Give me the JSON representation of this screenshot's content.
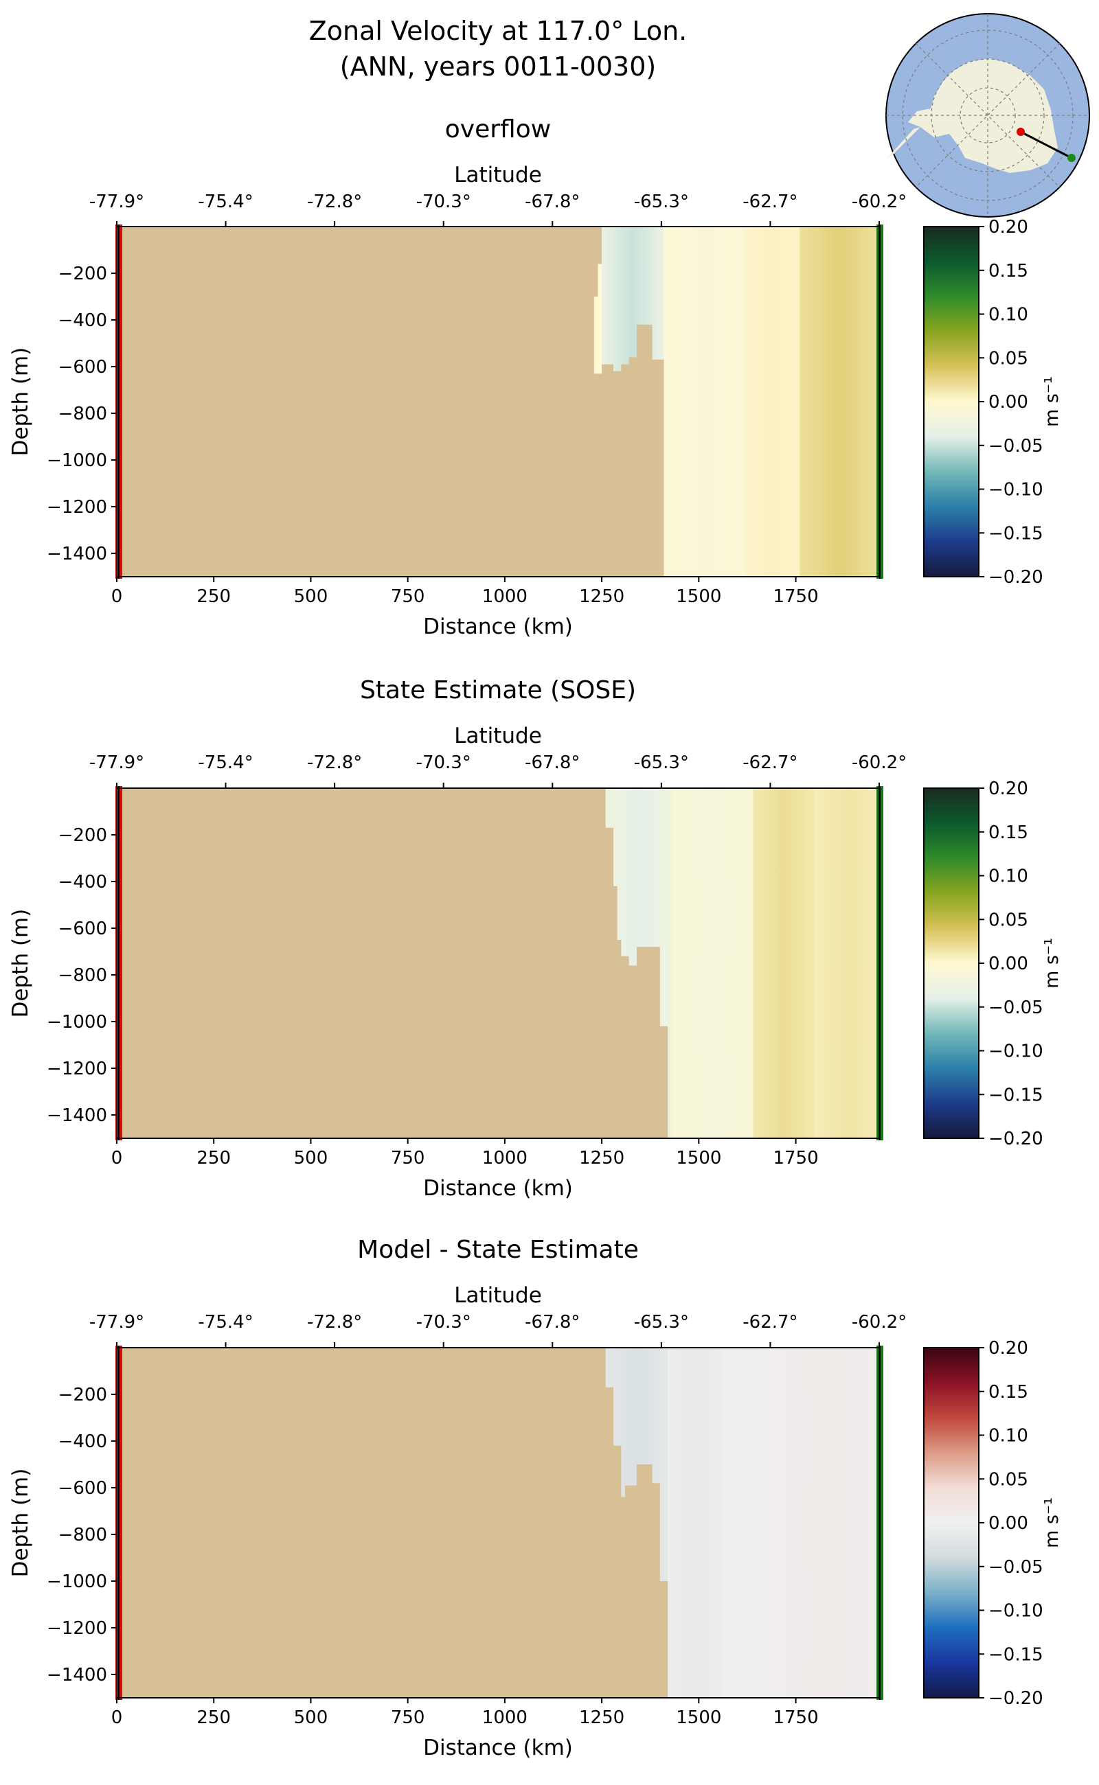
{
  "figure": {
    "title_line1": "Zonal Velocity at 117.0° Lon.",
    "title_line2": "(ANN, years 0011-0030)"
  },
  "inset_map": {
    "type": "south-polar-stereographic",
    "land_color": "#efefdb",
    "ocean_color": "#9bb7e0",
    "start_marker_color": "#e00000",
    "end_marker_color": "#1a8c1a"
  },
  "chart_data": [
    {
      "type": "heatmap",
      "title": "overflow",
      "xlabel": "Distance (km)",
      "ylabel": "Depth (m)",
      "top_xlabel": "Latitude",
      "xlim": [
        0,
        1965
      ],
      "ylim": [
        -1500,
        0
      ],
      "xticks": [
        0,
        250,
        500,
        750,
        1000,
        1250,
        1500,
        1750
      ],
      "yticks": [
        -200,
        -400,
        -600,
        -800,
        -1000,
        -1200,
        -1400
      ],
      "latitude_ticks": [
        "-77.9°",
        "-75.4°",
        "-72.8°",
        "-70.3°",
        "-67.8°",
        "-65.3°",
        "-62.7°",
        "-60.2°"
      ],
      "colorbar": {
        "label": "m s⁻¹",
        "min": -0.2,
        "max": 0.2,
        "ticks": [
          "0.20",
          "0.15",
          "0.10",
          "0.05",
          "0.00",
          "−0.05",
          "−0.10",
          "−0.15",
          "−0.20"
        ],
        "colormap": "diverging-green-yellow-teal-blue"
      },
      "bathymetry_km_depth": [
        [
          0,
          -1500
        ],
        [
          0,
          0
        ],
        [
          1250,
          0
        ],
        [
          1250,
          -160
        ],
        [
          1240,
          -160
        ],
        [
          1240,
          -300
        ],
        [
          1230,
          -300
        ],
        [
          1230,
          -630
        ],
        [
          1250,
          -630
        ],
        [
          1250,
          -590
        ],
        [
          1280,
          -590
        ],
        [
          1280,
          -620
        ],
        [
          1300,
          -620
        ],
        [
          1300,
          -590
        ],
        [
          1320,
          -590
        ],
        [
          1320,
          -560
        ],
        [
          1340,
          -560
        ],
        [
          1340,
          -420
        ],
        [
          1380,
          -420
        ],
        [
          1380,
          -570
        ],
        [
          1410,
          -570
        ],
        [
          1410,
          -1500
        ]
      ],
      "velocity_bands": [
        {
          "x": [
            1250,
            1410
          ],
          "value": -0.05
        },
        {
          "x": [
            1410,
            1620
          ],
          "value": -0.01
        },
        {
          "x": [
            1620,
            1760
          ],
          "value": 0.005
        },
        {
          "x": [
            1760,
            1965
          ],
          "value": 0.03
        }
      ]
    },
    {
      "type": "heatmap",
      "title": "State Estimate (SOSE)",
      "xlabel": "Distance (km)",
      "ylabel": "Depth (m)",
      "top_xlabel": "Latitude",
      "xlim": [
        0,
        1965
      ],
      "ylim": [
        -1500,
        0
      ],
      "xticks": [
        0,
        250,
        500,
        750,
        1000,
        1250,
        1500,
        1750
      ],
      "yticks": [
        -200,
        -400,
        -600,
        -800,
        -1000,
        -1200,
        -1400
      ],
      "latitude_ticks": [
        "-77.9°",
        "-75.4°",
        "-72.8°",
        "-70.3°",
        "-67.8°",
        "-65.3°",
        "-62.7°",
        "-60.2°"
      ],
      "colorbar": {
        "label": "m s⁻¹",
        "min": -0.2,
        "max": 0.2,
        "ticks": [
          "0.20",
          "0.15",
          "0.10",
          "0.05",
          "0.00",
          "−0.05",
          "−0.10",
          "−0.15",
          "−0.20"
        ],
        "colormap": "diverging-green-yellow-teal-blue"
      },
      "bathymetry_km_depth": [
        [
          0,
          -1500
        ],
        [
          0,
          0
        ],
        [
          1260,
          0
        ],
        [
          1260,
          -170
        ],
        [
          1280,
          -170
        ],
        [
          1280,
          -420
        ],
        [
          1290,
          -420
        ],
        [
          1290,
          -650
        ],
        [
          1300,
          -650
        ],
        [
          1300,
          -720
        ],
        [
          1320,
          -720
        ],
        [
          1320,
          -760
        ],
        [
          1340,
          -760
        ],
        [
          1340,
          -680
        ],
        [
          1400,
          -680
        ],
        [
          1400,
          -1020
        ],
        [
          1420,
          -1020
        ],
        [
          1420,
          -1500
        ]
      ],
      "velocity_bands": [
        {
          "x": [
            1260,
            1430
          ],
          "value": -0.04
        },
        {
          "x": [
            1430,
            1640
          ],
          "value": -0.015
        },
        {
          "x": [
            1640,
            1800
          ],
          "value": 0.02
        },
        {
          "x": [
            1800,
            1965
          ],
          "value": 0.015
        }
      ]
    },
    {
      "type": "heatmap",
      "title": "Model - State Estimate",
      "xlabel": "Distance (km)",
      "ylabel": "Depth (m)",
      "top_xlabel": "Latitude",
      "xlim": [
        0,
        1965
      ],
      "ylim": [
        -1500,
        0
      ],
      "xticks": [
        0,
        250,
        500,
        750,
        1000,
        1250,
        1500,
        1750
      ],
      "yticks": [
        -200,
        -400,
        -600,
        -800,
        -1000,
        -1200,
        -1400
      ],
      "latitude_ticks": [
        "-77.9°",
        "-75.4°",
        "-72.8°",
        "-70.3°",
        "-67.8°",
        "-65.3°",
        "-62.7°",
        "-60.2°"
      ],
      "colorbar": {
        "label": "m s⁻¹",
        "min": -0.2,
        "max": 0.2,
        "ticks": [
          "0.20",
          "0.15",
          "0.10",
          "0.05",
          "0.00",
          "−0.05",
          "−0.10",
          "−0.15",
          "−0.20"
        ],
        "colormap": "diverging-red-white-blue"
      },
      "bathymetry_km_depth": [
        [
          0,
          -1500
        ],
        [
          0,
          0
        ],
        [
          1260,
          0
        ],
        [
          1260,
          -170
        ],
        [
          1280,
          -170
        ],
        [
          1280,
          -420
        ],
        [
          1300,
          -420
        ],
        [
          1300,
          -640
        ],
        [
          1310,
          -640
        ],
        [
          1310,
          -590
        ],
        [
          1340,
          -590
        ],
        [
          1340,
          -500
        ],
        [
          1380,
          -500
        ],
        [
          1380,
          -580
        ],
        [
          1400,
          -580
        ],
        [
          1400,
          -1000
        ],
        [
          1420,
          -1000
        ],
        [
          1420,
          -1500
        ]
      ],
      "velocity_bands": [
        {
          "x": [
            1260,
            1420
          ],
          "value": -0.03
        },
        {
          "x": [
            1420,
            1560
          ],
          "value": -0.01
        },
        {
          "x": [
            1560,
            1700
          ],
          "value": 0.005
        },
        {
          "x": [
            1700,
            1965
          ],
          "value": 0.01
        }
      ]
    }
  ]
}
